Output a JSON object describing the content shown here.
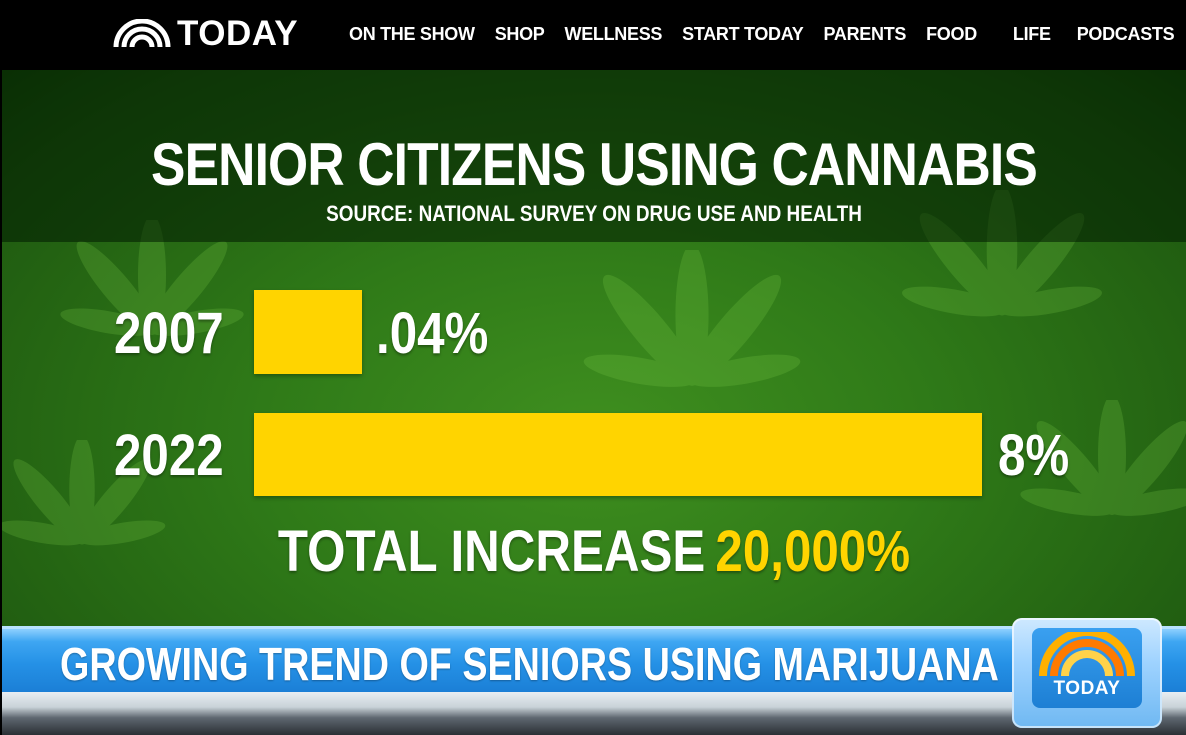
{
  "brand": {
    "logo_text": "TODAY",
    "logo_icon": "rainbow-icon"
  },
  "nav": {
    "items": [
      {
        "label": "ON THE SHOW"
      },
      {
        "label": "SHOP"
      },
      {
        "label": "WELLNESS"
      },
      {
        "label": "START TODAY"
      },
      {
        "label": "PARENTS"
      },
      {
        "label": "FOOD"
      },
      {
        "label": "LIFE"
      },
      {
        "label": "PODCASTS"
      }
    ]
  },
  "graphic": {
    "headline": "SENIOR CITIZENS USING CANNABIS",
    "source": "SOURCE: NATIONAL SURVEY ON DRUG USE AND HEALTH",
    "total_label": "TOTAL INCREASE",
    "total_value": "20,000%"
  },
  "chart_data": {
    "type": "bar",
    "orientation": "horizontal",
    "categories": [
      "2007",
      "2022"
    ],
    "values": [
      0.04,
      8
    ],
    "value_labels": [
      ".04%",
      "8%"
    ],
    "title": "SENIOR CITIZENS USING CANNABIS",
    "subtitle": "SOURCE: NATIONAL SURVEY ON DRUG USE AND HEALTH",
    "bar_color": "#ffd400"
  },
  "lower_third": {
    "text": "GROWING TREND OF SENIORS USING MARIJUANA",
    "bug_text": "TODAY"
  },
  "colors": {
    "background_green": "#2f7a18",
    "accent_yellow": "#ffd400",
    "lower_third_blue": "#2591e6",
    "nav_bg": "#000000"
  }
}
